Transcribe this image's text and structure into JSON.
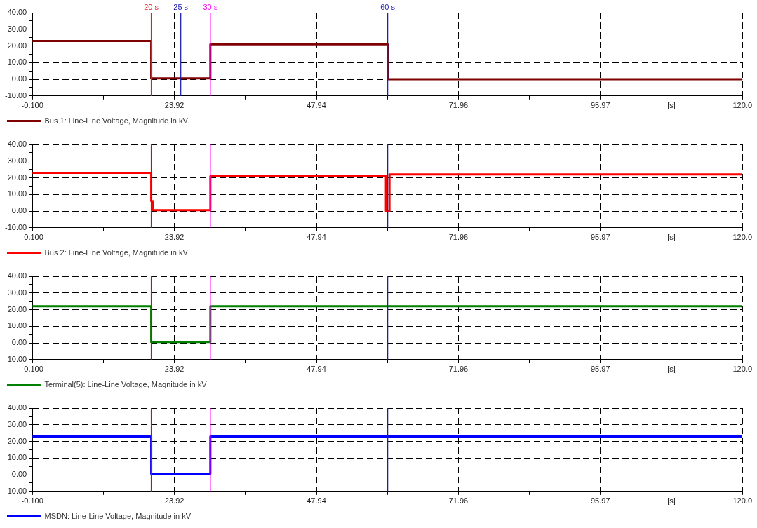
{
  "chart_data": [
    {
      "type": "line",
      "x": [
        -0.1,
        20,
        20,
        30,
        30,
        60,
        60,
        120
      ],
      "series": [
        {
          "name": "Bus 1: Line-Line Voltage, Magnitude in kV",
          "color": "#800000",
          "values": [
            23,
            23,
            0.5,
            0.5,
            21,
            21,
            0,
            0
          ]
        }
      ],
      "xlim": [
        -0.1,
        120
      ],
      "xticks": [
        {
          "value": -0.1,
          "label": "-0.100"
        },
        {
          "value": 11.91,
          "label": null
        },
        23.92,
        {
          "value": 35.93,
          "label": null
        },
        47.94,
        {
          "value": 59.95,
          "label": null
        },
        71.96,
        {
          "value": 83.97,
          "label": null
        },
        95.97,
        {
          "value": 107.98,
          "label": "[s]"
        },
        {
          "value": 120,
          "label": "120.0"
        }
      ],
      "ylim": [
        -10,
        40
      ],
      "yticks": [
        {
          "value": -10,
          "label": "-10.00"
        },
        {
          "value": -5,
          "label": null
        },
        {
          "value": 0,
          "label": "0.00"
        },
        {
          "value": 5,
          "label": null
        },
        {
          "value": 10,
          "label": "10.00"
        },
        {
          "value": 15,
          "label": null
        },
        {
          "value": 20,
          "label": "20.00"
        },
        {
          "value": 25,
          "label": null
        },
        {
          "value": 30,
          "label": "30.00"
        },
        {
          "value": 35,
          "label": null
        },
        {
          "value": 40,
          "label": "40.00"
        }
      ],
      "ref_lines": [
        {
          "axis": "x",
          "value": 20,
          "label": "20 s",
          "color": "#e02020"
        },
        {
          "axis": "x",
          "value": 25,
          "label": "25 s",
          "color": "#2020b0"
        },
        {
          "axis": "x",
          "value": 30,
          "label": "30 s",
          "color": "#ff00ff"
        },
        {
          "axis": "x",
          "value": 60,
          "label": "60 s",
          "color": "#2020b0"
        }
      ],
      "grid": true,
      "legend": "bottom left",
      "marker": "none",
      "line_style": "solid"
    },
    {
      "type": "line",
      "x": [
        -0.1,
        20,
        20,
        20.3,
        20.3,
        30,
        30,
        59.7,
        59.7,
        60.3,
        60.3,
        120
      ],
      "series": [
        {
          "name": "Bus 2: Line-Line Voltage, Magnitude in kV",
          "color": "#ff0000",
          "values": [
            23,
            23,
            6,
            6,
            0.5,
            0.5,
            21,
            21,
            0,
            0,
            22,
            22
          ]
        }
      ],
      "xlim": [
        -0.1,
        120
      ],
      "xticks": [
        {
          "value": -0.1,
          "label": "-0.100"
        },
        {
          "value": 11.91,
          "label": null
        },
        23.92,
        {
          "value": 35.93,
          "label": null
        },
        47.94,
        {
          "value": 59.95,
          "label": null
        },
        71.96,
        {
          "value": 83.97,
          "label": null
        },
        95.97,
        {
          "value": 107.98,
          "label": "[s]"
        },
        {
          "value": 120,
          "label": "120.0"
        }
      ],
      "ylim": [
        -10,
        40
      ],
      "yticks": [
        {
          "value": -10,
          "label": "-10.00"
        },
        {
          "value": -5,
          "label": null
        },
        {
          "value": 0,
          "label": "0.00"
        },
        {
          "value": 5,
          "label": null
        },
        {
          "value": 10,
          "label": "10.00"
        },
        {
          "value": 15,
          "label": null
        },
        {
          "value": 20,
          "label": "20.00"
        },
        {
          "value": 25,
          "label": null
        },
        {
          "value": 30,
          "label": "30.00"
        },
        {
          "value": 35,
          "label": null
        },
        {
          "value": 40,
          "label": "40.00"
        }
      ],
      "ref_lines": [
        {
          "axis": "x",
          "value": 20,
          "color": "#a02020"
        },
        {
          "axis": "x",
          "value": 30,
          "color": "#ff00ff"
        },
        {
          "axis": "x",
          "value": 60,
          "color": "#202090"
        }
      ],
      "grid": true,
      "legend": "bottom left",
      "marker": "none",
      "line_style": "solid"
    },
    {
      "type": "line",
      "x": [
        -0.1,
        20,
        20,
        30,
        30,
        120
      ],
      "series": [
        {
          "name": "Terminal(5): Line-Line Voltage, Magnitude in kV",
          "color": "#008000",
          "values": [
            22,
            22,
            0.5,
            0.5,
            22,
            22
          ]
        }
      ],
      "xlim": [
        -0.1,
        120
      ],
      "xticks": [
        {
          "value": -0.1,
          "label": "-0.100"
        },
        {
          "value": 11.91,
          "label": null
        },
        23.92,
        {
          "value": 35.93,
          "label": null
        },
        47.94,
        {
          "value": 59.95,
          "label": null
        },
        71.96,
        {
          "value": 83.97,
          "label": null
        },
        95.97,
        {
          "value": 107.98,
          "label": "[s]"
        },
        {
          "value": 120,
          "label": "120.0"
        }
      ],
      "ylim": [
        -10,
        40
      ],
      "yticks": [
        {
          "value": -10,
          "label": "-10.00"
        },
        {
          "value": -5,
          "label": null
        },
        {
          "value": 0,
          "label": "0.00"
        },
        {
          "value": 5,
          "label": null
        },
        {
          "value": 10,
          "label": "10.00"
        },
        {
          "value": 15,
          "label": null
        },
        {
          "value": 20,
          "label": "20.00"
        },
        {
          "value": 25,
          "label": null
        },
        {
          "value": 30,
          "label": "30.00"
        },
        {
          "value": 35,
          "label": null
        },
        {
          "value": 40,
          "label": "40.00"
        }
      ],
      "ref_lines": [
        {
          "axis": "x",
          "value": 20,
          "color": "#a02020"
        },
        {
          "axis": "x",
          "value": 30,
          "color": "#ff00ff"
        },
        {
          "axis": "x",
          "value": 60,
          "color": "#202090"
        }
      ],
      "grid": true,
      "legend": "bottom left",
      "marker": "none",
      "line_style": "solid"
    },
    {
      "type": "line",
      "x": [
        -0.1,
        20,
        20,
        30,
        30,
        120
      ],
      "series": [
        {
          "name": "MSDN: Line-Line Voltage, Magnitude in kV",
          "color": "#0000ff",
          "values": [
            23,
            23,
            0.5,
            0.5,
            23,
            23
          ]
        }
      ],
      "xlim": [
        -0.1,
        120
      ],
      "xticks": [
        {
          "value": -0.1,
          "label": "-0.100"
        },
        {
          "value": 11.91,
          "label": null
        },
        23.92,
        {
          "value": 35.93,
          "label": null
        },
        47.94,
        {
          "value": 59.95,
          "label": null
        },
        71.96,
        {
          "value": 83.97,
          "label": null
        },
        95.97,
        {
          "value": 107.98,
          "label": "[s]"
        },
        {
          "value": 120,
          "label": "120.0"
        }
      ],
      "ylim": [
        -10,
        40
      ],
      "yticks": [
        {
          "value": -10,
          "label": "-10.00"
        },
        {
          "value": -5,
          "label": null
        },
        {
          "value": 0,
          "label": "0.00"
        },
        {
          "value": 5,
          "label": null
        },
        {
          "value": 10,
          "label": "10.00"
        },
        {
          "value": 15,
          "label": null
        },
        {
          "value": 20,
          "label": "20.00"
        },
        {
          "value": 25,
          "label": null
        },
        {
          "value": 30,
          "label": "30.00"
        },
        {
          "value": 35,
          "label": null
        },
        {
          "value": 40,
          "label": "40.00"
        }
      ],
      "ref_lines": [
        {
          "axis": "x",
          "value": 20,
          "color": "#a02020"
        },
        {
          "axis": "x",
          "value": 30,
          "color": "#ff00ff"
        },
        {
          "axis": "x",
          "value": 60,
          "color": "#202090"
        }
      ],
      "grid": true,
      "legend": "bottom left",
      "marker": "none",
      "line_style": "solid"
    }
  ]
}
